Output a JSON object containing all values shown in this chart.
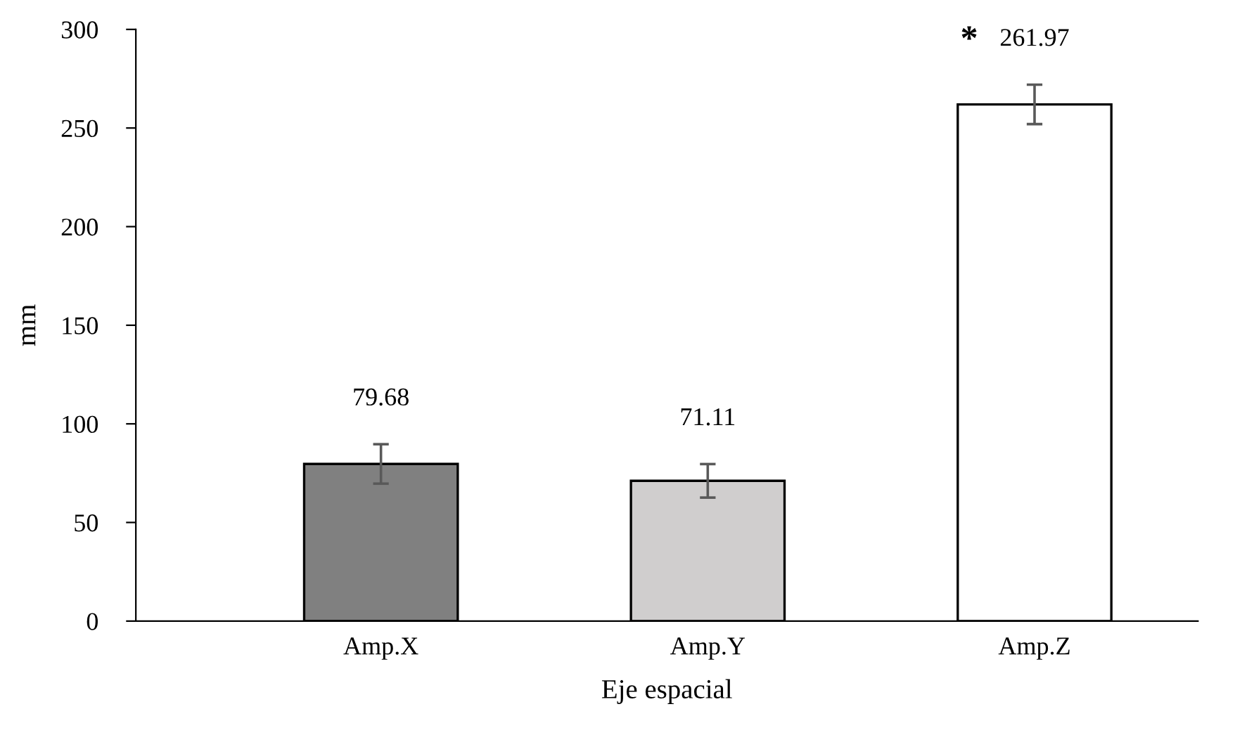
{
  "chart_data": {
    "type": "bar",
    "xlabel": "Eje espacial",
    "ylabel": "mm",
    "categories": [
      "Amp.X",
      "Amp.Y",
      "Amp.Z"
    ],
    "values": [
      79.68,
      71.11,
      261.97
    ],
    "colors": [
      "#808080",
      "#d0cece",
      "#ffffff"
    ],
    "errors": [
      10,
      8.5,
      10
    ],
    "ylim": [
      0,
      300
    ],
    "yticks": [
      0,
      50,
      100,
      150,
      200,
      250,
      300
    ],
    "data_labels": true,
    "grid": false,
    "legend": false,
    "annotations": [
      {
        "text": "*",
        "x": "Amp.Z",
        "y": 261.97
      }
    ]
  }
}
